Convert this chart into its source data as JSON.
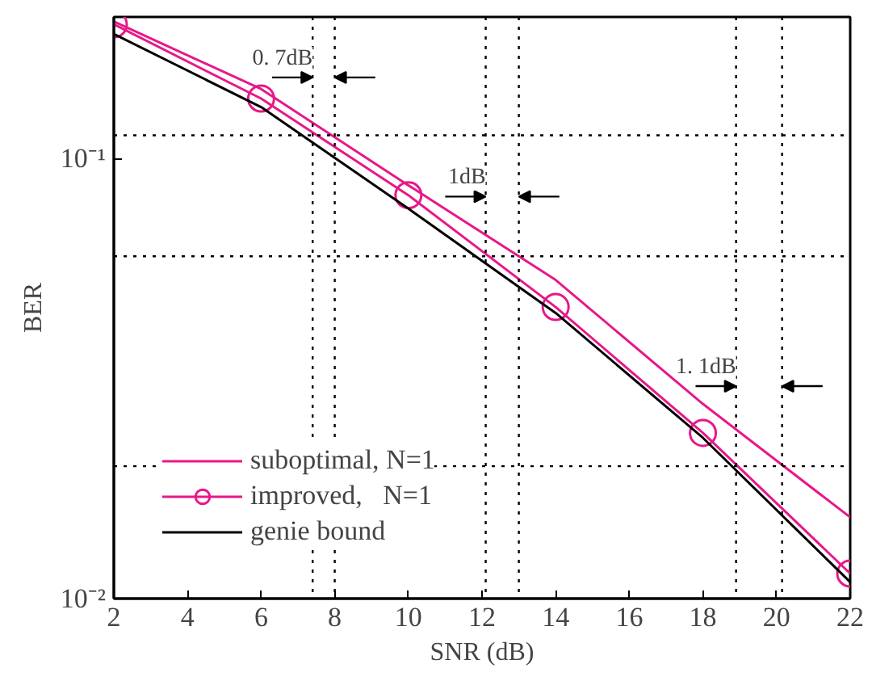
{
  "chart_data": {
    "type": "line",
    "xlabel": "SNR (dB)",
    "ylabel": "BER",
    "x": [
      2,
      6,
      10,
      14,
      18,
      22
    ],
    "series": [
      {
        "name": "suboptimal, N=1",
        "color": "#e8178a",
        "values": [
          0.205,
          0.144,
          0.087,
          0.053,
          0.0277,
          0.0153
        ],
        "marker": "none"
      },
      {
        "name": "improved,   N=1",
        "color": "#e8178a",
        "values": [
          0.202,
          0.137,
          0.0826,
          0.046,
          0.0238,
          0.0114
        ],
        "marker": "circle"
      },
      {
        "name": "genie bound",
        "color": "#000000",
        "values": [
          0.192,
          0.131,
          0.077,
          0.0446,
          0.0232,
          0.0109
        ],
        "marker": "none"
      }
    ],
    "log": "y",
    "xlim": [
      2,
      22
    ],
    "xticks": [
      2,
      4,
      6,
      8,
      10,
      12,
      14,
      16,
      18,
      20,
      22
    ],
    "ylim": [
      0.01,
      0.21
    ],
    "yticks": [
      {
        "value": 0.01,
        "label": "10⁻²"
      },
      {
        "value": 0.1,
        "label": "10⁻¹"
      }
    ],
    "ref_lines": [
      {
        "axis": "x",
        "value": 7.4,
        "line_style": "dotted",
        "color": "#000000"
      },
      {
        "axis": "x",
        "value": 8.0,
        "line_style": "dotted",
        "color": "#000000"
      },
      {
        "axis": "x",
        "value": 12.1,
        "line_style": "dotted",
        "color": "#000000"
      },
      {
        "axis": "x",
        "value": 13.0,
        "line_style": "dotted",
        "color": "#000000"
      },
      {
        "axis": "x",
        "value": 18.9,
        "line_style": "dotted",
        "color": "#000000"
      },
      {
        "axis": "x",
        "value": 20.15,
        "line_style": "dotted",
        "color": "#000000"
      },
      {
        "axis": "y",
        "value": 0.113,
        "line_style": "dotted",
        "color": "#000000"
      },
      {
        "axis": "y",
        "value": 0.06,
        "line_style": "dotted",
        "color": "#000000"
      },
      {
        "axis": "y",
        "value": 0.02,
        "line_style": "dotted",
        "color": "#000000"
      }
    ],
    "annotations": [
      {
        "text": "0. 7dB",
        "x": 7.4,
        "y": 0.153
      },
      {
        "text": "1dB",
        "x": 12.1,
        "y": 0.082
      },
      {
        "text": "1. 1dB",
        "x": 18.9,
        "y": 0.0304
      }
    ],
    "legend": "bottom left",
    "grid": false,
    "line_style": "solid"
  }
}
